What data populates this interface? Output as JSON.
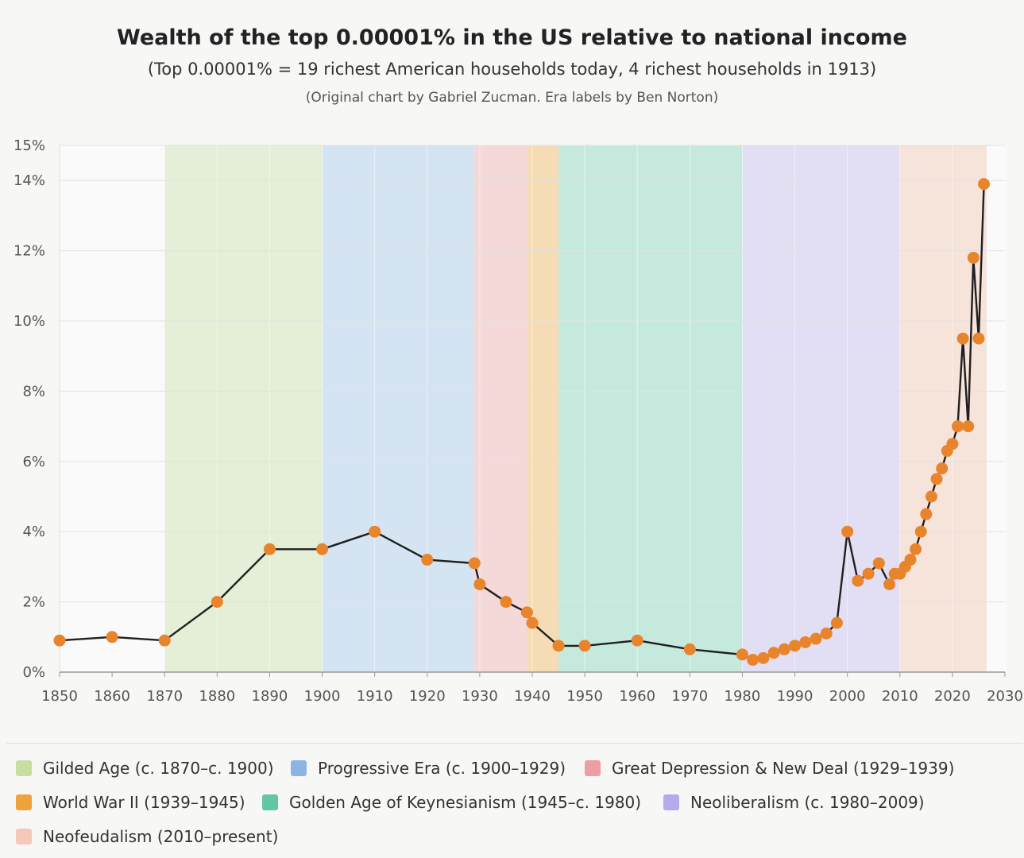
{
  "title": "Wealth of the top 0.00001% in the US relative to national income",
  "subtitle": "(Top 0.00001% = 19 richest American households today, 4 richest households in 1913)",
  "credit": "(Original chart by Gabriel Zucman. Era labels by Ben Norton)",
  "chart_data": {
    "type": "line",
    "title": "Wealth of the top 0.00001% in the US relative to national income",
    "xlabel": "",
    "ylabel": "",
    "xlim": [
      1850,
      2030
    ],
    "ylim": [
      0,
      15
    ],
    "x_ticks": [
      "1850",
      "1860",
      "1870",
      "1880",
      "1890",
      "1900",
      "1910",
      "1920",
      "1930",
      "1940",
      "1950",
      "1960",
      "1970",
      "1980",
      "1990",
      "2000",
      "2010",
      "2020",
      "2030"
    ],
    "y_ticks": [
      "0%",
      "2%",
      "4%",
      "6%",
      "8%",
      "10%",
      "12%",
      "14%",
      "15%"
    ],
    "grid": true,
    "line_color": "#1f1f1f",
    "marker_color": "#e8852c",
    "series": [
      {
        "x": [
          1850,
          1860,
          1870,
          1880,
          1890,
          1900,
          1910,
          1920,
          1929,
          1930,
          1935,
          1939,
          1940,
          1945,
          1950,
          1960,
          1970,
          1980,
          1982,
          1984,
          1986,
          1988,
          1990,
          1992,
          1994,
          1996,
          1998,
          2000,
          2002,
          2004,
          2006,
          2008,
          2009,
          2010,
          2011,
          2012,
          2013,
          2014,
          2015,
          2016,
          2017,
          2018,
          2019,
          2020,
          2021,
          2022,
          2023,
          2024,
          2025,
          2026
        ],
        "y": [
          0.9,
          1.0,
          0.9,
          2.0,
          3.5,
          3.5,
          4.0,
          3.2,
          3.1,
          2.5,
          2.0,
          1.7,
          1.4,
          0.75,
          0.75,
          0.9,
          0.65,
          0.5,
          0.35,
          0.4,
          0.55,
          0.65,
          0.75,
          0.85,
          0.95,
          1.1,
          1.4,
          4.0,
          2.6,
          2.8,
          3.1,
          2.5,
          2.8,
          2.8,
          3.0,
          3.2,
          3.5,
          4.0,
          4.5,
          5.0,
          5.5,
          5.8,
          6.3,
          6.5,
          7.0,
          9.5,
          7.0,
          11.8,
          9.5,
          13.9
        ]
      }
    ],
    "eras": [
      {
        "label": "Gilded Age (c. 1870–c. 1900)",
        "start": 1870,
        "end": 1900,
        "color": "#c8dea0",
        "band": "#e4edd4"
      },
      {
        "label": "Progressive Era (c. 1900–1929)",
        "start": 1900,
        "end": 1929,
        "color": "#8cb4e4",
        "band": "#d3e3f1"
      },
      {
        "label": "Great Depression & New Deal (1929–1939)",
        "start": 1929,
        "end": 1939,
        "color": "#ee9da2",
        "band": "#f4d6d6"
      },
      {
        "label": "World War II (1939–1945)",
        "start": 1939,
        "end": 1945,
        "color": "#f0a33c",
        "band": "#f4dab0"
      },
      {
        "label": "Golden Age of Keynesianism (1945–c. 1980)",
        "start": 1945,
        "end": 1980,
        "color": "#62c6a6",
        "band": "#c3e8db"
      },
      {
        "label": "Neoliberalism (c. 1980–2009)",
        "start": 1980,
        "end": 2010,
        "color": "#b3acec",
        "band": "#e0dcf2"
      },
      {
        "label": "Neofeudalism (2010–present)",
        "start": 2010,
        "end": 2026.5,
        "color": "#f5c8b8",
        "band": "#f6e1d8"
      }
    ]
  }
}
